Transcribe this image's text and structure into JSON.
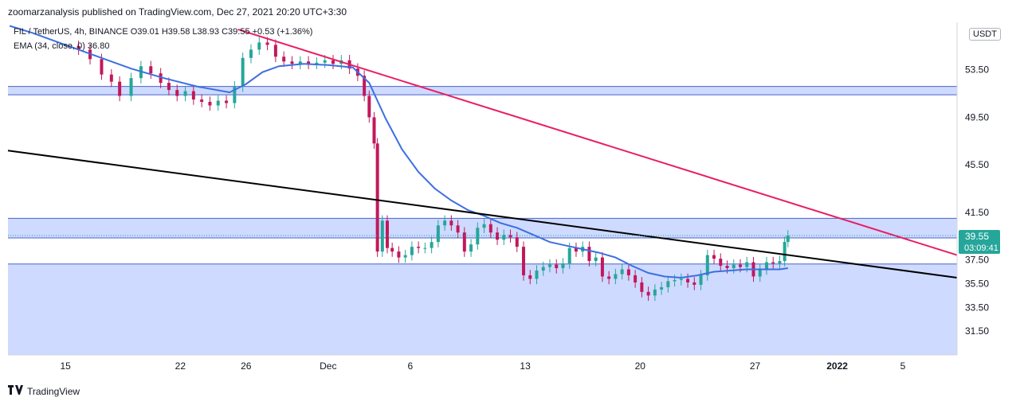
{
  "header": {
    "publisher": "zoomarzanalysis published on TradingView.com, Dec 27, 2021 20:20 UTC+3:30"
  },
  "legend": {
    "symbol_line": "FIL / TetherUS, 4h, BINANCE  O39.01  H39.58  L38.93  C39.55  +0.53 (+1.36%)",
    "ema_line": "EMA (34, close, 0)  36.80"
  },
  "currency_label": "USDT",
  "last_price": {
    "value": "39.55",
    "countdown": "03:09:41",
    "color": "#26a69a"
  },
  "footer": {
    "brand": "TradingView",
    "logo_icon": "tradingview-logo-icon"
  },
  "colors": {
    "up": "#26a69a",
    "down": "#c2185b",
    "ema": "#3d6fe0",
    "zone": "#c5d3ff",
    "zone_border": "#4a63c9",
    "red_trend": "#e91e63",
    "black_trend": "#000000"
  },
  "chart_data": {
    "type": "candlestick",
    "title": "FIL / TetherUS, 4h, BINANCE",
    "ylabel": "USDT",
    "y_ticks": [
      "53.50",
      "49.50",
      "45.50",
      "41.50",
      "37.50",
      "35.50",
      "33.50",
      "31.50"
    ],
    "y_tick_values": [
      53.5,
      49.5,
      45.5,
      41.5,
      37.5,
      35.5,
      33.5,
      31.5
    ],
    "x_ticks": [
      "15",
      "22",
      "26",
      "Dec",
      "6",
      "13",
      "20",
      "27",
      "2022",
      "5"
    ],
    "x_tick_days": [
      0,
      7,
      11,
      16,
      21,
      28,
      35,
      42,
      47,
      51
    ],
    "ylim": [
      29.5,
      57.5
    ],
    "xlim_days": [
      -3.5,
      54.3
    ],
    "ohlc_close": [
      [
        0.8,
        55.2
      ],
      [
        1.5,
        54.4
      ],
      [
        2.2,
        53.1
      ],
      [
        2.8,
        52.5
      ],
      [
        3.3,
        51.3
      ],
      [
        4.0,
        52.8
      ],
      [
        4.6,
        53.8
      ],
      [
        5.2,
        53.2
      ],
      [
        5.8,
        52.4
      ],
      [
        6.3,
        51.8
      ],
      [
        6.8,
        51.3
      ],
      [
        7.3,
        51.7
      ],
      [
        7.8,
        51.0
      ],
      [
        8.3,
        50.8
      ],
      [
        8.8,
        50.5
      ],
      [
        9.3,
        50.9
      ],
      [
        9.8,
        50.7
      ],
      [
        10.3,
        52.1
      ],
      [
        10.8,
        54.5
      ],
      [
        11.3,
        55.2
      ],
      [
        11.8,
        55.8
      ],
      [
        12.3,
        55.6
      ],
      [
        12.8,
        54.6
      ],
      [
        13.3,
        54.2
      ],
      [
        13.8,
        54.0
      ],
      [
        14.3,
        54.2
      ],
      [
        14.8,
        54.0
      ],
      [
        15.3,
        54.1
      ],
      [
        15.8,
        54.3
      ],
      [
        16.3,
        54.0
      ],
      [
        16.8,
        54.3
      ],
      [
        17.3,
        53.6
      ],
      [
        17.8,
        53.0
      ],
      [
        18.2,
        51.3
      ],
      [
        18.5,
        49.5
      ],
      [
        18.8,
        47.3
      ],
      [
        19.0,
        38.2
      ],
      [
        19.3,
        40.8
      ],
      [
        19.6,
        38.5
      ],
      [
        19.9,
        38.2
      ],
      [
        20.3,
        37.7
      ],
      [
        20.7,
        37.9
      ],
      [
        21.1,
        38.6
      ],
      [
        21.5,
        38.5
      ],
      [
        21.9,
        38.5
      ],
      [
        22.3,
        39.0
      ],
      [
        22.7,
        40.4
      ],
      [
        23.1,
        40.8
      ],
      [
        23.5,
        40.4
      ],
      [
        23.9,
        39.8
      ],
      [
        24.3,
        38.2
      ],
      [
        24.7,
        38.8
      ],
      [
        25.1,
        40.2
      ],
      [
        25.5,
        40.5
      ],
      [
        25.9,
        39.8
      ],
      [
        26.3,
        39.2
      ],
      [
        26.7,
        39.6
      ],
      [
        27.1,
        39.4
      ],
      [
        27.5,
        38.6
      ],
      [
        27.9,
        36.2
      ],
      [
        28.3,
        35.9
      ],
      [
        28.7,
        36.6
      ],
      [
        29.1,
        36.9
      ],
      [
        29.5,
        37.1
      ],
      [
        29.9,
        36.8
      ],
      [
        30.3,
        37.2
      ],
      [
        30.7,
        38.5
      ],
      [
        31.1,
        38.2
      ],
      [
        31.5,
        38.6
      ],
      [
        31.9,
        37.4
      ],
      [
        32.3,
        37.7
      ],
      [
        32.7,
        36.1
      ],
      [
        33.1,
        35.9
      ],
      [
        33.5,
        36.3
      ],
      [
        33.9,
        36.7
      ],
      [
        34.3,
        36.2
      ],
      [
        34.7,
        35.6
      ],
      [
        35.1,
        34.8
      ],
      [
        35.5,
        34.5
      ],
      [
        35.9,
        35.0
      ],
      [
        36.3,
        35.2
      ],
      [
        36.7,
        35.7
      ],
      [
        37.1,
        35.8
      ],
      [
        37.5,
        35.9
      ],
      [
        37.9,
        35.6
      ],
      [
        38.3,
        35.4
      ],
      [
        38.7,
        36.2
      ],
      [
        39.1,
        37.9
      ],
      [
        39.5,
        37.6
      ],
      [
        39.9,
        37.0
      ],
      [
        40.3,
        36.8
      ],
      [
        40.7,
        37.1
      ],
      [
        41.1,
        36.9
      ],
      [
        41.5,
        37.3
      ],
      [
        41.9,
        36.1
      ],
      [
        42.3,
        36.7
      ],
      [
        42.7,
        37.3
      ],
      [
        43.1,
        37.2
      ],
      [
        43.5,
        37.4
      ],
      [
        43.8,
        39.01
      ],
      [
        44.0,
        39.55
      ]
    ],
    "ema_34": [
      [
        -3.4,
        57.2
      ],
      [
        -2.0,
        56.6
      ],
      [
        0.0,
        55.6
      ],
      [
        2.0,
        54.6
      ],
      [
        4.0,
        53.6
      ],
      [
        6.0,
        52.8
      ],
      [
        8.0,
        52.1
      ],
      [
        10.0,
        51.6
      ],
      [
        11.0,
        52.3
      ],
      [
        12.0,
        53.3
      ],
      [
        13.0,
        53.8
      ],
      [
        14.5,
        54.0
      ],
      [
        16.0,
        53.9
      ],
      [
        17.5,
        53.7
      ],
      [
        18.5,
        52.4
      ],
      [
        19.5,
        49.4
      ],
      [
        20.5,
        46.8
      ],
      [
        21.5,
        44.9
      ],
      [
        22.5,
        43.5
      ],
      [
        23.5,
        42.5
      ],
      [
        24.5,
        41.7
      ],
      [
        25.5,
        41.2
      ],
      [
        26.5,
        40.6
      ],
      [
        27.5,
        40.2
      ],
      [
        28.5,
        39.6
      ],
      [
        29.5,
        39.0
      ],
      [
        30.5,
        38.7
      ],
      [
        31.5,
        38.4
      ],
      [
        32.5,
        38.1
      ],
      [
        33.5,
        37.7
      ],
      [
        34.5,
        37.0
      ],
      [
        35.5,
        36.4
      ],
      [
        36.5,
        36.1
      ],
      [
        37.5,
        36.0
      ],
      [
        38.5,
        36.2
      ],
      [
        39.5,
        36.5
      ],
      [
        40.5,
        36.6
      ],
      [
        41.5,
        36.7
      ],
      [
        42.5,
        36.7
      ],
      [
        43.5,
        36.7
      ],
      [
        44.0,
        36.8
      ]
    ],
    "zones": [
      {
        "from": 51.4,
        "to": 52.1
      },
      {
        "from": 39.35,
        "to": 41.0
      },
      {
        "from": 29.5,
        "to": 37.15
      }
    ],
    "dotted_level": 39.55,
    "trendlines": [
      {
        "name": "descending resistance",
        "color": "#e91e63",
        "from": [
          10.5,
          56.9
        ],
        "to": [
          54.3,
          37.9
        ]
      },
      {
        "name": "descending support",
        "color": "#000000",
        "from": [
          -3.5,
          46.7
        ],
        "to": [
          54.3,
          36.0
        ]
      }
    ]
  }
}
